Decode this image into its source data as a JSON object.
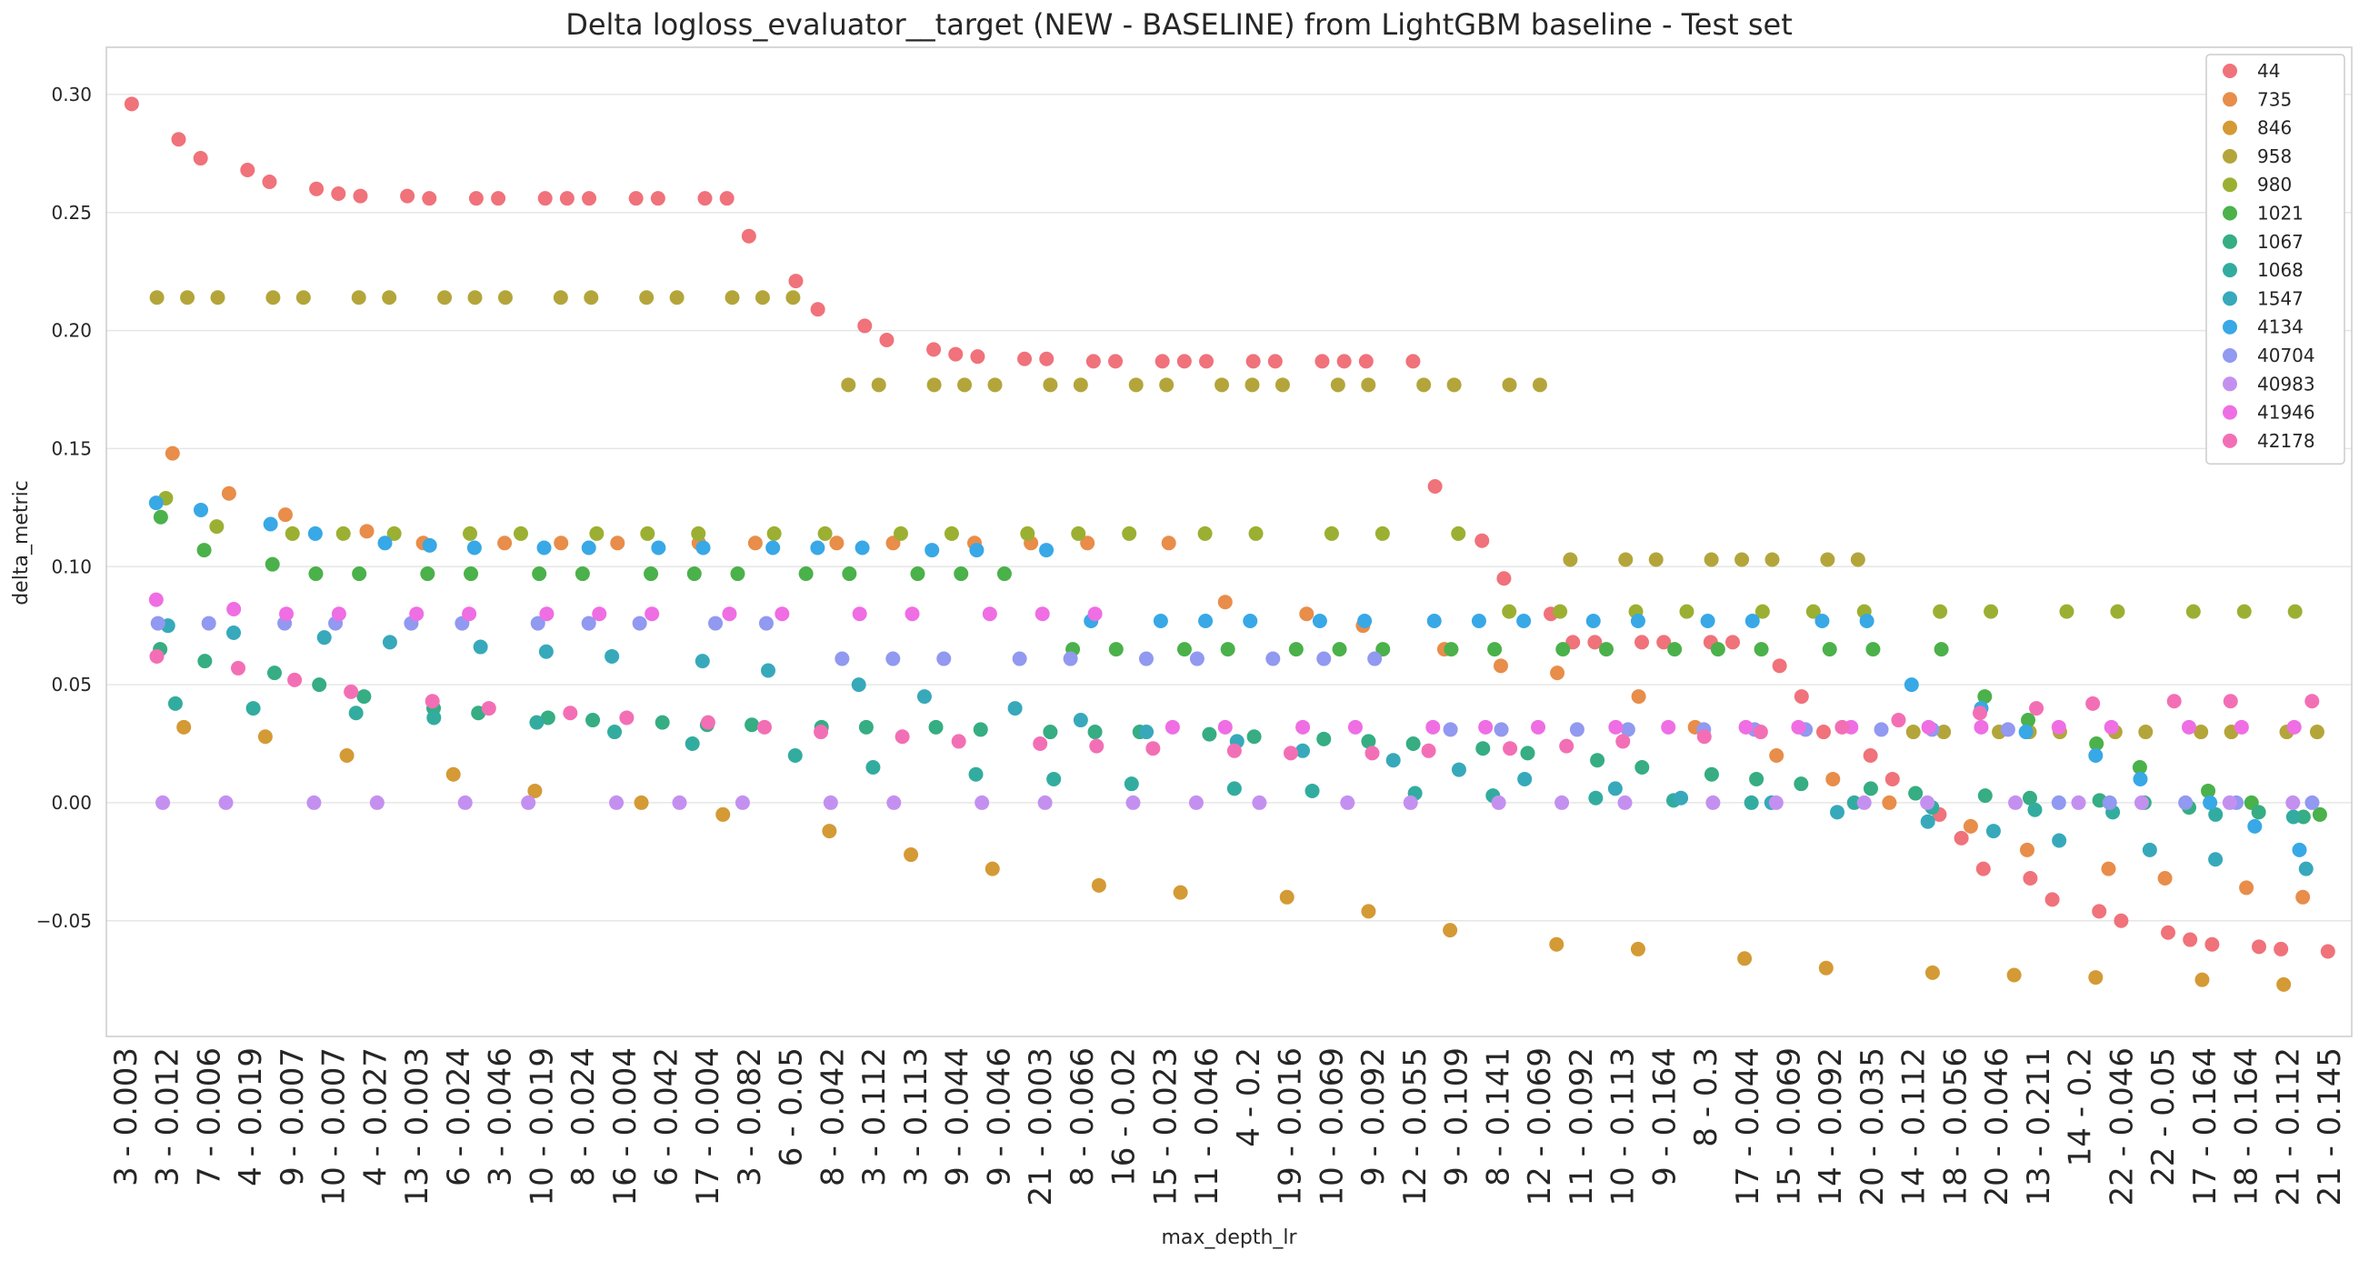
{
  "chart_data": {
    "type": "scatter",
    "title": "Delta logloss_evaluator__target (NEW - BASELINE) from LightGBM baseline - Test set",
    "xlabel": "max_depth_lr",
    "ylabel": "delta_metric",
    "ylim": [
      -0.099,
      0.32
    ],
    "yticks": [
      "0.30",
      "0.25",
      "0.20",
      "0.15",
      "0.10",
      "0.05",
      "0.00",
      "−0.05"
    ],
    "ytick_values": [
      0.3,
      0.25,
      0.2,
      0.15,
      0.1,
      0.05,
      0.0,
      -0.05
    ],
    "x_tick_labels": [
      "3 - 0.003",
      "3 - 0.012",
      "7 - 0.006",
      "4 - 0.019",
      "9 - 0.007",
      "10 - 0.007",
      "4 - 0.027",
      "13 - 0.003",
      "6 - 0.024",
      "3 - 0.046",
      "10 - 0.019",
      "8 - 0.024",
      "16 - 0.004",
      "6 - 0.042",
      "17 - 0.004",
      "3 - 0.082",
      "6 - 0.05",
      "8 - 0.042",
      "3 - 0.112",
      "3 - 0.113",
      "9 - 0.044",
      "9 - 0.046",
      "21 - 0.003",
      "8 - 0.066",
      "16 - 0.02",
      "15 - 0.023",
      "11 - 0.046",
      "4 - 0.2",
      "19 - 0.016",
      "10 - 0.069",
      "9 - 0.092",
      "12 - 0.055",
      "9 - 0.109",
      "8 - 0.141",
      "12 - 0.069",
      "11 - 0.092",
      "10 - 0.113",
      "9 - 0.164",
      "8 - 0.3",
      "17 - 0.044",
      "15 - 0.069",
      "14 - 0.092",
      "20 - 0.035",
      "14 - 0.112",
      "18 - 0.056",
      "20 - 0.046",
      "13 - 0.211",
      "14 - 0.2",
      "22 - 0.046",
      "22 - 0.05",
      "17 - 0.164",
      "18 - 0.164",
      "21 - 0.112",
      "21 - 0.145"
    ],
    "legend_position": "top-right",
    "grid": "horizontal",
    "series": [
      {
        "name": "44",
        "color": "#f0727a",
        "values": [
          0.296,
          0.281,
          0.273,
          0.268,
          0.263,
          0.26,
          0.258,
          0.257,
          0.257,
          0.256,
          0.256,
          0.256,
          0.256,
          0.256,
          0.256,
          0.256,
          0.256,
          0.256,
          0.256,
          0.24,
          0.221,
          0.209,
          0.202,
          0.196,
          0.192,
          0.19,
          0.189,
          0.188,
          0.188,
          0.187,
          0.187,
          0.187,
          0.187,
          0.187,
          0.187,
          0.187,
          0.187,
          0.187,
          0.187,
          0.187,
          0.134,
          0.111,
          0.095,
          0.08,
          0.068,
          0.068,
          0.068,
          0.068,
          0.068,
          0.068,
          0.058,
          0.045,
          0.03,
          0.02,
          0.01,
          -0.005,
          -0.015,
          -0.028,
          -0.032,
          -0.041,
          -0.046,
          -0.05,
          -0.055,
          -0.058,
          -0.06,
          -0.061,
          -0.062,
          -0.063
        ]
      },
      {
        "name": "735",
        "color": "#e88d4a",
        "values": [
          0.148,
          0.131,
          0.122,
          0.115,
          0.11,
          0.11,
          0.11,
          0.11,
          0.11,
          0.11,
          0.11,
          0.11,
          0.11,
          0.11,
          0.11,
          0.11,
          0.085,
          0.08,
          0.075,
          0.065,
          0.058,
          0.055,
          0.045,
          0.032,
          0.02,
          0.01,
          0.0,
          -0.01,
          -0.02,
          -0.028,
          -0.032,
          -0.036,
          -0.04
        ]
      },
      {
        "name": "846",
        "color": "#d49a35",
        "values": [
          0.032,
          0.028,
          0.02,
          0.012,
          0.005,
          0.0,
          -0.005,
          -0.012,
          -0.022,
          -0.028,
          -0.035,
          -0.038,
          -0.04,
          -0.046,
          -0.054,
          -0.06,
          -0.062,
          -0.066,
          -0.07,
          -0.072,
          -0.073,
          -0.074,
          -0.075,
          -0.077
        ]
      },
      {
        "name": "958",
        "color": "#b4a53b",
        "values": [
          0.214,
          0.214,
          0.214,
          0.214,
          0.214,
          0.214,
          0.214,
          0.214,
          0.214,
          0.214,
          0.214,
          0.214,
          0.214,
          0.214,
          0.214,
          0.214,
          0.214,
          0.177,
          0.177,
          0.177,
          0.177,
          0.177,
          0.177,
          0.177,
          0.177,
          0.177,
          0.177,
          0.177,
          0.177,
          0.177,
          0.177,
          0.177,
          0.177,
          0.177,
          0.177,
          0.103,
          0.103,
          0.103,
          0.103,
          0.103,
          0.103,
          0.103,
          0.103,
          0.03,
          0.03,
          0.03,
          0.03,
          0.03,
          0.03,
          0.03,
          0.03,
          0.03,
          0.03,
          0.03
        ]
      },
      {
        "name": "980",
        "color": "#9bb032",
        "values": [
          0.129,
          0.117,
          0.114,
          0.114,
          0.114,
          0.114,
          0.114,
          0.114,
          0.114,
          0.114,
          0.114,
          0.114,
          0.114,
          0.114,
          0.114,
          0.114,
          0.114,
          0.114,
          0.114,
          0.114,
          0.114,
          0.114,
          0.081,
          0.081,
          0.081,
          0.081,
          0.081,
          0.081,
          0.081,
          0.081,
          0.081,
          0.081,
          0.081,
          0.081,
          0.081,
          0.081
        ]
      },
      {
        "name": "1021",
        "color": "#4bb14a",
        "values": [
          0.121,
          0.107,
          0.101,
          0.097,
          0.097,
          0.097,
          0.097,
          0.097,
          0.097,
          0.097,
          0.097,
          0.097,
          0.097,
          0.097,
          0.097,
          0.097,
          0.097,
          0.065,
          0.065,
          0.065,
          0.065,
          0.065,
          0.065,
          0.065,
          0.065,
          0.065,
          0.065,
          0.065,
          0.065,
          0.065,
          0.065,
          0.065,
          0.065,
          0.065,
          0.045,
          0.035,
          0.025,
          0.015,
          0.005,
          0.0,
          -0.005
        ]
      },
      {
        "name": "1067",
        "color": "#36ad83",
        "values": [
          0.065,
          0.06,
          0.055,
          0.05,
          0.045,
          0.04,
          0.038,
          0.036,
          0.035,
          0.034,
          0.033,
          0.033,
          0.032,
          0.032,
          0.032,
          0.031,
          0.03,
          0.03,
          0.03,
          0.029,
          0.028,
          0.027,
          0.026,
          0.025,
          0.023,
          0.021,
          0.018,
          0.015,
          0.012,
          0.01,
          0.008,
          0.006,
          0.004,
          0.003,
          0.002,
          0.001,
          0.0,
          -0.002,
          -0.004,
          -0.006
        ]
      },
      {
        "name": "1068",
        "color": "#33aca0",
        "values": [
          0.042,
          0.04,
          0.038,
          0.036,
          0.034,
          0.03,
          0.025,
          0.02,
          0.015,
          0.012,
          0.01,
          0.008,
          0.006,
          0.005,
          0.004,
          0.003,
          0.002,
          0.001,
          0.0,
          0.0,
          -0.002,
          -0.003,
          -0.004,
          -0.005,
          -0.006
        ]
      },
      {
        "name": "1547",
        "color": "#37a9bb",
        "values": [
          0.075,
          0.072,
          0.07,
          0.068,
          0.066,
          0.064,
          0.062,
          0.06,
          0.056,
          0.05,
          0.045,
          0.04,
          0.035,
          0.03,
          0.026,
          0.022,
          0.018,
          0.014,
          0.01,
          0.006,
          0.002,
          0.0,
          -0.004,
          -0.008,
          -0.012,
          -0.016,
          -0.02,
          -0.024,
          -0.028
        ]
      },
      {
        "name": "4134",
        "color": "#38a8e6",
        "values": [
          0.127,
          0.124,
          0.118,
          0.114,
          0.11,
          0.109,
          0.108,
          0.108,
          0.108,
          0.108,
          0.108,
          0.108,
          0.108,
          0.108,
          0.107,
          0.107,
          0.107,
          0.077,
          0.077,
          0.077,
          0.077,
          0.077,
          0.077,
          0.077,
          0.077,
          0.077,
          0.077,
          0.077,
          0.077,
          0.077,
          0.077,
          0.077,
          0.05,
          0.04,
          0.03,
          0.02,
          0.01,
          0.0,
          -0.01,
          -0.02
        ]
      },
      {
        "name": "40704",
        "color": "#9199f0",
        "values": [
          0.076,
          0.076,
          0.076,
          0.076,
          0.076,
          0.076,
          0.076,
          0.076,
          0.076,
          0.076,
          0.076,
          0.061,
          0.061,
          0.061,
          0.061,
          0.061,
          0.061,
          0.061,
          0.061,
          0.061,
          0.061,
          0.031,
          0.031,
          0.031,
          0.031,
          0.031,
          0.031,
          0.031,
          0.031,
          0.031,
          0.031,
          0.0,
          0.0,
          0.0,
          0.0,
          0.0
        ]
      },
      {
        "name": "40983",
        "color": "#c490f0",
        "values": [
          0.0,
          0.0,
          0.0,
          0.0,
          0.0,
          0.0,
          0.0,
          0.0,
          0.0,
          0.0,
          0.0,
          0.0,
          0.0,
          0.0,
          0.0,
          0.0,
          0.0,
          0.0,
          0.0,
          0.0,
          0.0,
          0.0,
          0.0,
          0.0,
          0.0,
          0.0,
          0.0,
          0.0,
          0.0,
          0.0
        ]
      },
      {
        "name": "41946",
        "color": "#ef6ee3",
        "values": [
          0.086,
          0.082,
          0.08,
          0.08,
          0.08,
          0.08,
          0.08,
          0.08,
          0.08,
          0.08,
          0.08,
          0.08,
          0.08,
          0.08,
          0.08,
          0.08,
          0.032,
          0.032,
          0.032,
          0.032,
          0.032,
          0.032,
          0.032,
          0.032,
          0.032,
          0.032,
          0.032,
          0.032,
          0.032,
          0.032,
          0.032,
          0.032,
          0.032,
          0.032,
          0.032
        ]
      },
      {
        "name": "42178",
        "color": "#f36fb5",
        "values": [
          0.062,
          0.057,
          0.052,
          0.047,
          0.043,
          0.04,
          0.038,
          0.036,
          0.034,
          0.032,
          0.03,
          0.028,
          0.026,
          0.025,
          0.024,
          0.023,
          0.022,
          0.021,
          0.021,
          0.022,
          0.023,
          0.024,
          0.026,
          0.028,
          0.03,
          0.032,
          0.035,
          0.038,
          0.04,
          0.042,
          0.043,
          0.043,
          0.043
        ]
      }
    ]
  }
}
